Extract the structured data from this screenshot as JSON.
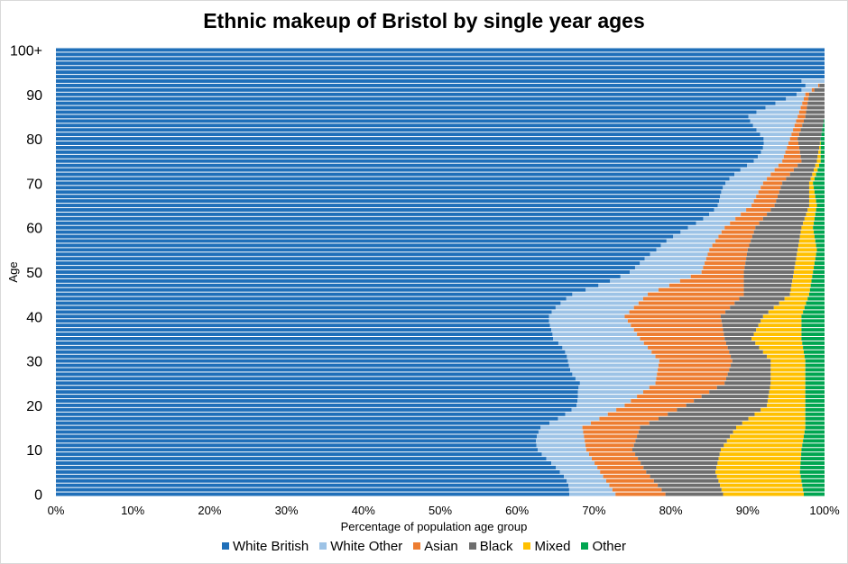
{
  "chart_data": {
    "type": "bar",
    "orientation": "horizontal",
    "stacked": true,
    "title": "Ethnic makeup of Bristol by single year ages",
    "xlabel": "Percentage of population age group",
    "ylabel": "Age",
    "xlim": [
      0,
      100
    ],
    "ylim": [
      0,
      100
    ],
    "x_ticks": [
      "0%",
      "10%",
      "20%",
      "30%",
      "40%",
      "50%",
      "60%",
      "70%",
      "80%",
      "90%",
      "100%"
    ],
    "y_ticks": [
      "0",
      "10",
      "20",
      "30",
      "40",
      "50",
      "60",
      "70",
      "80",
      "90",
      "100+"
    ],
    "legend_position": "bottom",
    "series_names": [
      "White British",
      "White Other",
      "Asian",
      "Black",
      "Mixed",
      "Other"
    ],
    "colors": [
      "#1f6fb9",
      "#9dc3e6",
      "#ed7d31",
      "#6e6e6e",
      "#ffc000",
      "#00a550"
    ],
    "ages_note_hidden": "rows are ages 0..100+",
    "key_points": [
      {
        "age": 0,
        "values": [
          66.8,
          6.0,
          6.5,
          7.5,
          10.5,
          2.7
        ]
      },
      {
        "age": 5,
        "values": [
          64.8,
          6.0,
          6.0,
          9.0,
          11.0,
          3.2
        ]
      },
      {
        "age": 10,
        "values": [
          63.5,
          5.5,
          6.0,
          11.5,
          10.5,
          3.0
        ]
      },
      {
        "age": 15,
        "values": [
          63.0,
          5.5,
          7.5,
          12.5,
          9.0,
          2.5
        ]
      },
      {
        "age": 20,
        "values": [
          67.0,
          7.0,
          8.0,
          10.5,
          5.0,
          2.5
        ]
      },
      {
        "age": 25,
        "values": [
          69.0,
          9.0,
          9.0,
          6.0,
          4.5,
          2.5
        ]
      },
      {
        "age": 30,
        "values": [
          66.5,
          12.0,
          9.5,
          5.0,
          4.5,
          2.5
        ]
      },
      {
        "age": 35,
        "values": [
          64.0,
          12.0,
          11.0,
          3.5,
          6.5,
          3.0
        ]
      },
      {
        "age": 40,
        "values": [
          65.0,
          9.0,
          12.5,
          5.5,
          5.0,
          3.0
        ]
      },
      {
        "age": 45,
        "values": [
          67.0,
          10.0,
          12.5,
          6.0,
          2.5,
          2.0
        ]
      },
      {
        "age": 50,
        "values": [
          74.0,
          10.0,
          5.5,
          6.5,
          2.5,
          1.5
        ]
      },
      {
        "age": 55,
        "values": [
          79.0,
          6.0,
          5.0,
          6.5,
          2.5,
          1.0
        ]
      },
      {
        "age": 60,
        "values": [
          82.0,
          5.0,
          4.0,
          6.0,
          1.5,
          1.5
        ]
      },
      {
        "age": 65,
        "values": [
          85.5,
          5.0,
          3.0,
          4.5,
          1.0,
          1.0
        ]
      },
      {
        "age": 70,
        "values": [
          88.0,
          4.0,
          2.5,
          3.5,
          0.5,
          1.5
        ]
      },
      {
        "age": 75,
        "values": [
          90.5,
          4.0,
          2.5,
          2.0,
          0.5,
          0.5
        ]
      },
      {
        "age": 80,
        "values": [
          91.5,
          4.0,
          1.0,
          3.0,
          0.0,
          0.5
        ]
      },
      {
        "age": 85,
        "values": [
          91.0,
          5.5,
          1.0,
          2.5,
          0.0,
          0.0
        ]
      },
      {
        "age": 90,
        "values": [
          96.0,
          1.5,
          0.5,
          2.0,
          0.0,
          0.0
        ]
      },
      {
        "age": 93,
        "values": [
          97.0,
          3.0,
          0.0,
          0.0,
          0.0,
          0.0
        ]
      },
      {
        "age": 94,
        "values": [
          100.0,
          0.0,
          0.0,
          0.0,
          0.0,
          0.0
        ]
      },
      {
        "age": 100,
        "values": [
          100.0,
          0.0,
          0.0,
          0.0,
          0.0,
          0.0
        ]
      }
    ]
  }
}
